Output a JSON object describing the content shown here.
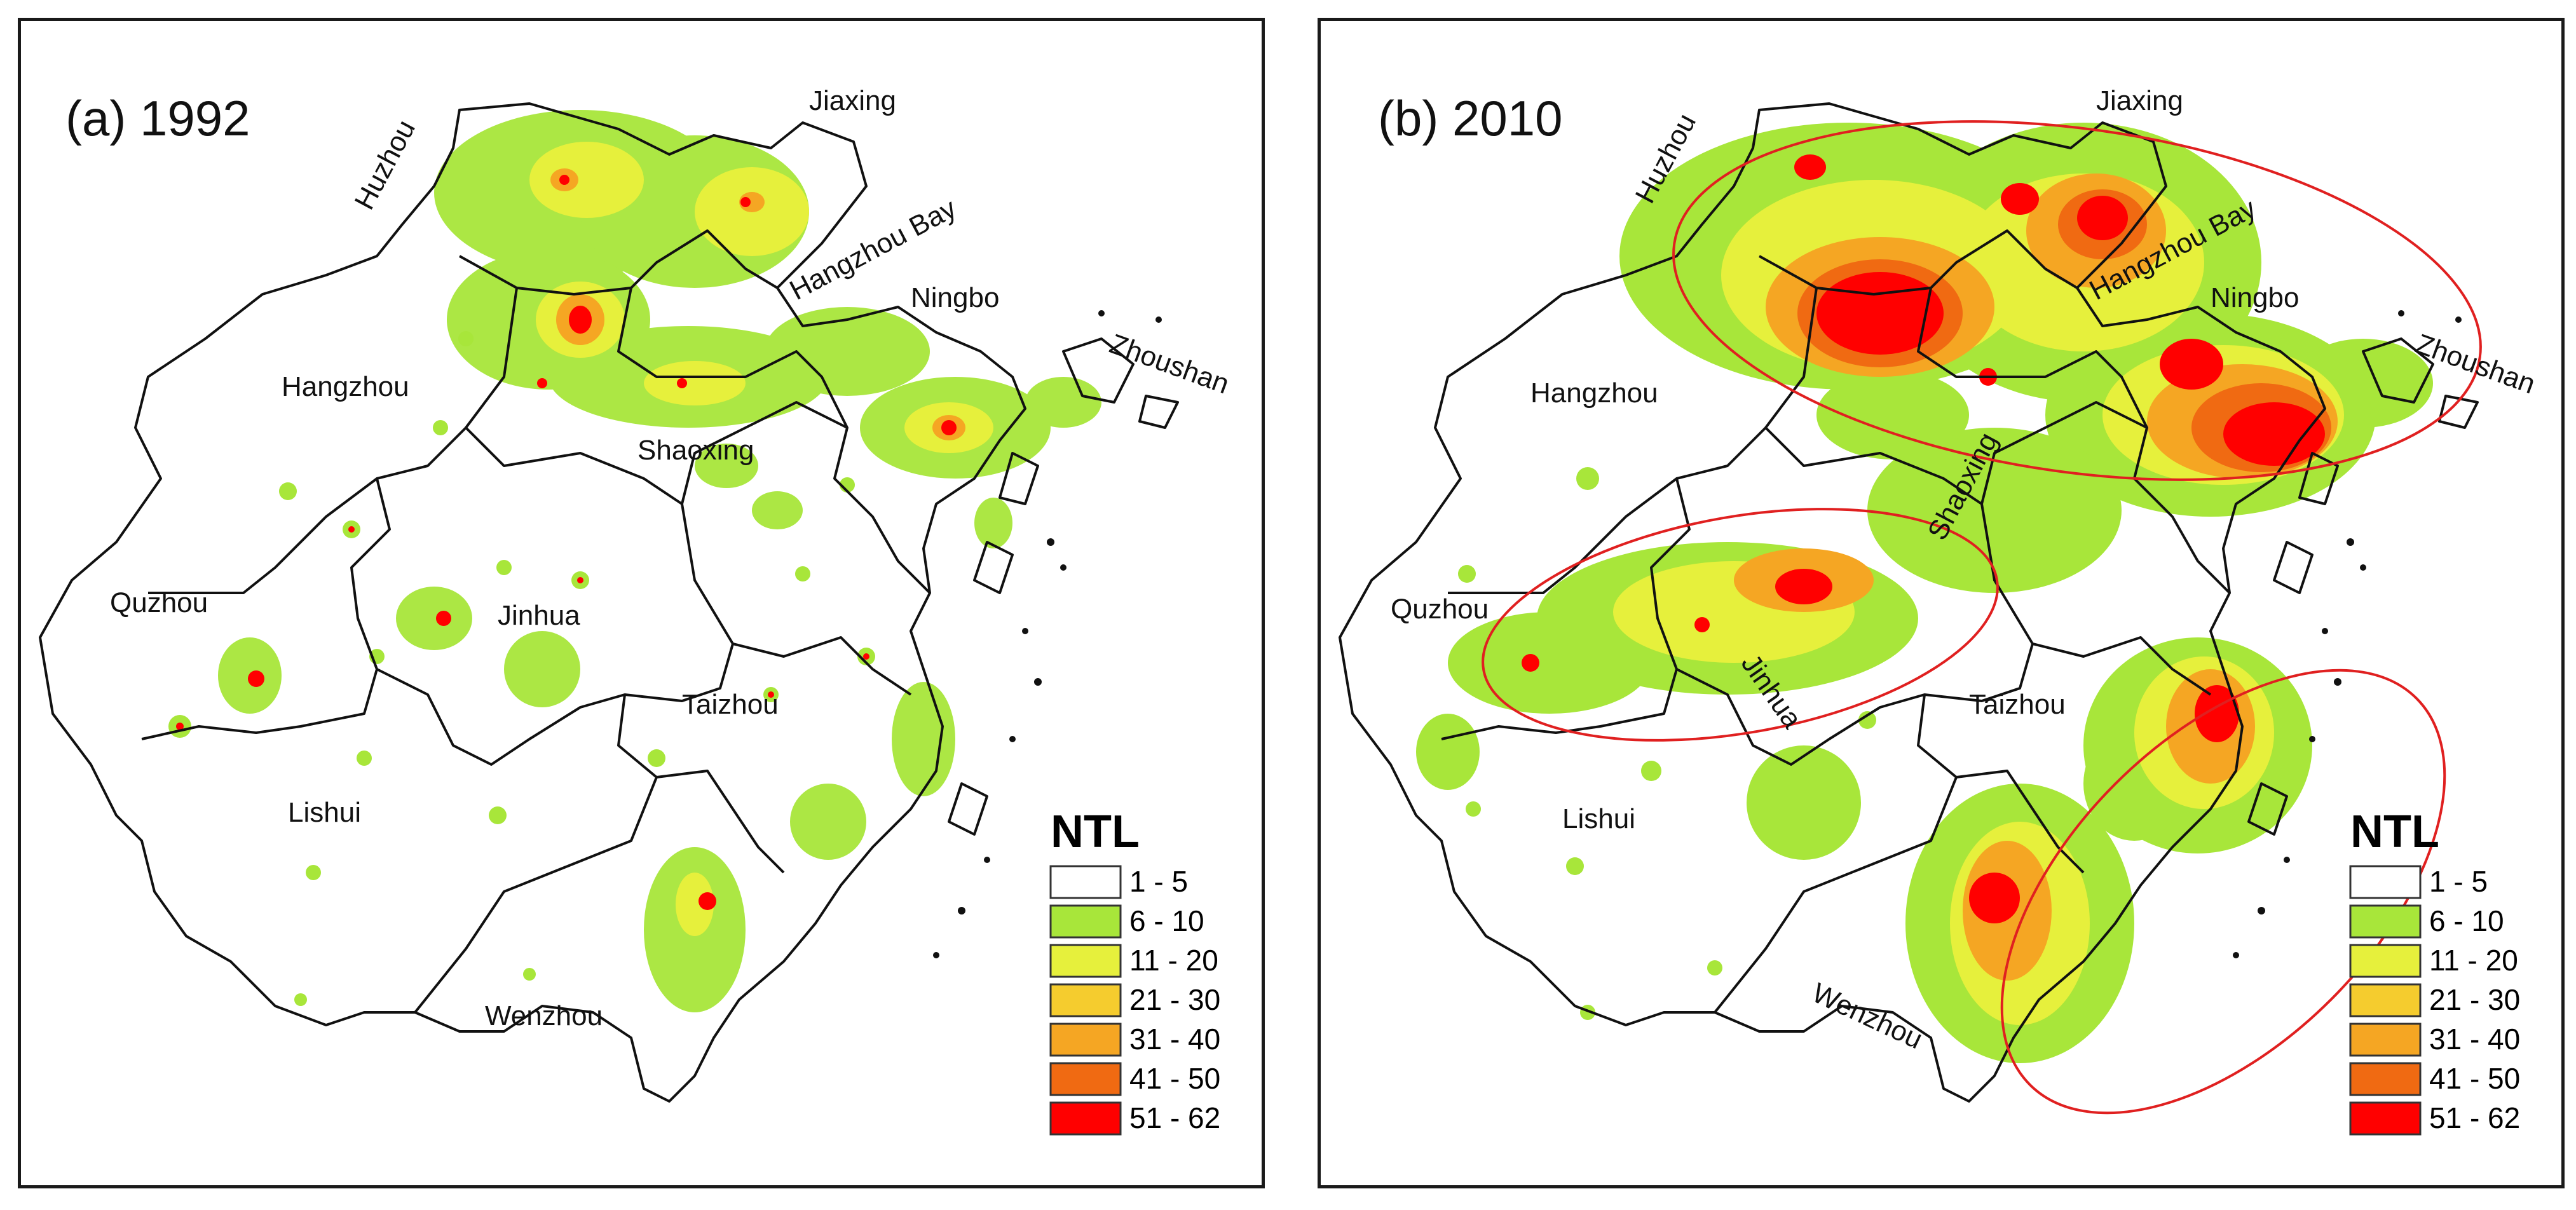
{
  "panels": [
    {
      "id": "a",
      "title": "(a) 1992",
      "labels": [
        "Huzhou",
        "Jiaxing",
        "Hangzhou Bay",
        "Ningbo",
        "Zhoushan",
        "Hangzhou",
        "Shaoxing",
        "Quzhou",
        "Jinhua",
        "Taizhou",
        "Lishui",
        "Wenzhou"
      ]
    },
    {
      "id": "b",
      "title": "(b) 2010",
      "labels": [
        "Huzhou",
        "Jiaxing",
        "Hangzhou Bay",
        "Ningbo",
        "Zhoushan",
        "Hangzhou",
        "Shaoxing",
        "Quzhou",
        "Jinhua",
        "Taizhou",
        "Lishui",
        "Wenzhou"
      ]
    }
  ],
  "legend": {
    "title": "NTL",
    "classes": [
      {
        "label": "1 - 5",
        "color": "#ffffff"
      },
      {
        "label": "6 - 10",
        "color": "#a8e63a"
      },
      {
        "label": "11 - 20",
        "color": "#e6f03c"
      },
      {
        "label": "21 - 30",
        "color": "#f5cc2e"
      },
      {
        "label": "31 - 40",
        "color": "#f5a623"
      },
      {
        "label": "41 - 50",
        "color": "#f06a12"
      },
      {
        "label": "51 - 62",
        "color": "#ff0000"
      }
    ]
  },
  "highlight_color": "#e02020"
}
